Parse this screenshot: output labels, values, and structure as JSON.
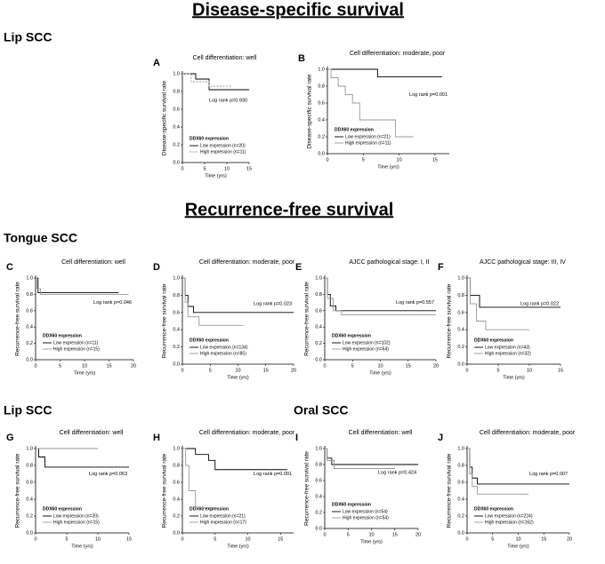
{
  "headings": {
    "dss": "Disease-specific survival",
    "rfs": "Recurrence-free survival"
  },
  "groups": {
    "lip1": "Lip SCC",
    "tongue": "Tongue SCC",
    "lip2": "Lip SCC",
    "oral": "Oral SCC"
  },
  "chart_data": [
    {
      "type": "line",
      "panel": "A",
      "title": "Cell differentiation: well",
      "annotation": "Log rank p=0.930",
      "xlabel": "Time (yrs)",
      "ylabel": "Disease-specific survival rate",
      "legend_title": "DDX60 expression",
      "xlim": [
        0,
        15
      ],
      "ylim": [
        0,
        1
      ],
      "xticks": [
        0,
        5,
        10,
        15
      ],
      "yticks": [
        {
          "value": 0,
          "label": "0.0"
        },
        0.2,
        0.4,
        0.6,
        0.8,
        {
          "value": 1,
          "label": "1.0"
        }
      ],
      "series": [
        {
          "name": "Low expression (n=20)",
          "color": "#000000",
          "linestyle": "solid",
          "x": [
            0,
            3,
            3,
            6,
            6,
            15
          ],
          "values": [
            1,
            1,
            0.94,
            0.94,
            0.82,
            0.82
          ]
        },
        {
          "name": "High expression (n=11)",
          "color": "#999999",
          "linestyle": "dashed",
          "x": [
            0,
            2,
            2,
            6,
            6,
            11
          ],
          "values": [
            1,
            1,
            0.91,
            0.91,
            0.86,
            0.86
          ]
        }
      ]
    },
    {
      "type": "line",
      "panel": "B",
      "title": "Cell differentiation: moderate, poor",
      "annotation": "Log rank p=0.001",
      "xlabel": "Time (yrs)",
      "ylabel": "Disease-specific survival rate",
      "legend_title": "DDX60 expression",
      "xlim": [
        0,
        17
      ],
      "ylim": [
        0,
        1
      ],
      "xticks": [
        0,
        5,
        10,
        15
      ],
      "yticks": [
        {
          "value": 0,
          "label": "0.0"
        },
        0.2,
        0.4,
        0.6,
        0.8,
        {
          "value": 1,
          "label": "1.0"
        }
      ],
      "series": [
        {
          "name": "Low expression (n=21)",
          "color": "#000000",
          "linestyle": "solid",
          "x": [
            0,
            7,
            7,
            16
          ],
          "values": [
            1,
            1,
            0.91,
            0.91
          ]
        },
        {
          "name": "High expression (n=11)",
          "color": "#999999",
          "linestyle": "solid",
          "x": [
            0,
            0.5,
            0.5,
            1.5,
            1.5,
            2.5,
            2.5,
            3.5,
            3.5,
            4.5,
            4.5,
            9.5,
            9.5,
            12
          ],
          "values": [
            1,
            1,
            0.9,
            0.9,
            0.8,
            0.8,
            0.7,
            0.7,
            0.6,
            0.6,
            0.4,
            0.4,
            0.2,
            0.2
          ]
        }
      ]
    },
    {
      "type": "line",
      "panel": "C",
      "title": "Cell differentiation: well",
      "annotation": "Log rank p=0.046",
      "xlabel": "Time (yrs)",
      "ylabel": "Recurrence-free survival rate",
      "legend_title": "DDX60 expression",
      "xlim": [
        0,
        20
      ],
      "ylim": [
        0,
        1
      ],
      "xticks": [
        0,
        5,
        10,
        15,
        20
      ],
      "yticks": [
        {
          "value": 0,
          "label": "0.0"
        },
        0.2,
        0.4,
        0.6,
        0.8,
        {
          "value": 1,
          "label": "1.0"
        }
      ],
      "series": [
        {
          "name": "Low expression (n=11)",
          "color": "#000000",
          "linestyle": "solid",
          "x": [
            0,
            0.5,
            0.5,
            17
          ],
          "values": [
            1,
            1,
            0.82,
            0.82
          ]
        },
        {
          "name": "High expression (n=15)",
          "color": "#999999",
          "linestyle": "solid",
          "x": [
            0,
            0.3,
            0.3,
            1,
            1,
            19
          ],
          "values": [
            1,
            1,
            0.87,
            0.87,
            0.8,
            0.8
          ]
        }
      ]
    },
    {
      "type": "line",
      "panel": "D",
      "title": "Cell differentiation: moderate, poor",
      "annotation": "Log rank p=0.023",
      "xlabel": "Time (yrs)",
      "ylabel": "Recurrence-free survival rate",
      "legend_title": "DDX60 expression",
      "xlim": [
        0,
        20
      ],
      "ylim": [
        0,
        1
      ],
      "xticks": [
        0,
        5,
        10,
        15,
        20
      ],
      "yticks": [
        {
          "value": 0,
          "label": "0.0"
        },
        0.2,
        0.4,
        0.6,
        0.8,
        {
          "value": 1,
          "label": "1.0"
        }
      ],
      "series": [
        {
          "name": "Low expression (n=134)",
          "color": "#000000",
          "linestyle": "solid",
          "x": [
            0,
            0.5,
            0.5,
            1,
            1,
            2,
            2,
            20
          ],
          "values": [
            1,
            1,
            0.8,
            0.8,
            0.67,
            0.67,
            0.6,
            0.6
          ]
        },
        {
          "name": "High expression (n=85)",
          "color": "#999999",
          "linestyle": "solid",
          "x": [
            0,
            0.5,
            0.5,
            1,
            1,
            3,
            3,
            11
          ],
          "values": [
            1,
            1,
            0.72,
            0.72,
            0.55,
            0.55,
            0.45,
            0.45
          ]
        }
      ]
    },
    {
      "type": "line",
      "panel": "E",
      "title": "AJCC pathological stage: I, II",
      "annotation": "Log rank p=0.557",
      "xlabel": "Time (yrs)",
      "ylabel": "Recurrence-free survival rate",
      "legend_title": "DDX60 expression",
      "xlim": [
        0,
        20
      ],
      "ylim": [
        0,
        1
      ],
      "xticks": [
        0,
        5,
        10,
        15,
        20
      ],
      "yticks": [
        {
          "value": 0,
          "label": "0.0"
        },
        0.2,
        0.4,
        0.6,
        0.8,
        {
          "value": 1,
          "label": "1.0"
        }
      ],
      "series": [
        {
          "name": "Low expression (n=102)",
          "color": "#000000",
          "linestyle": "solid",
          "x": [
            0,
            0.5,
            0.5,
            1,
            1,
            2,
            2,
            20
          ],
          "values": [
            1,
            1,
            0.8,
            0.8,
            0.66,
            0.66,
            0.6,
            0.6
          ]
        },
        {
          "name": "High expression (n=64)",
          "color": "#999999",
          "linestyle": "solid",
          "x": [
            0,
            0.5,
            0.5,
            1.5,
            1.5,
            3,
            3,
            20
          ],
          "values": [
            1,
            1,
            0.75,
            0.75,
            0.6,
            0.6,
            0.55,
            0.55
          ]
        }
      ]
    },
    {
      "type": "line",
      "panel": "F",
      "title": "AJCC pathological stage: III, IV",
      "annotation": "Log rank p=0.022",
      "xlabel": "Time (yrs)",
      "ylabel": "Recurrence-free survival rate",
      "legend_title": "DDX60 expression",
      "xlim": [
        0,
        15
      ],
      "ylim": [
        0,
        1
      ],
      "xticks": [
        0,
        5,
        10,
        15
      ],
      "yticks": [
        {
          "value": 0,
          "label": "0.0"
        },
        0.2,
        0.4,
        0.6,
        0.8,
        {
          "value": 1,
          "label": "1.0"
        }
      ],
      "series": [
        {
          "name": "Low expression (n=43)",
          "color": "#000000",
          "linestyle": "solid",
          "x": [
            0,
            0.5,
            0.5,
            2,
            2,
            15
          ],
          "values": [
            1,
            1,
            0.8,
            0.8,
            0.66,
            0.66
          ]
        },
        {
          "name": "High expression (n=32)",
          "color": "#999999",
          "linestyle": "solid",
          "x": [
            0,
            0.5,
            0.5,
            1.5,
            1.5,
            3,
            3,
            10
          ],
          "values": [
            1,
            1,
            0.7,
            0.7,
            0.5,
            0.5,
            0.4,
            0.4
          ]
        }
      ]
    },
    {
      "type": "line",
      "panel": "G",
      "title": "Cell differentiation: well",
      "annotation": "Log rank p=0.063",
      "xlabel": "Time (yrs)",
      "ylabel": "Recurrence-free survival rate",
      "legend_title": "DDX60 expression",
      "xlim": [
        0,
        15
      ],
      "ylim": [
        0,
        1
      ],
      "xticks": [
        0,
        5,
        10,
        15
      ],
      "yticks": [
        {
          "value": 0,
          "label": "0.0"
        },
        0.2,
        0.4,
        0.6,
        0.8,
        {
          "value": 1,
          "label": "1.0"
        }
      ],
      "series": [
        {
          "name": "Low expression (n=20)",
          "color": "#000000",
          "linestyle": "solid",
          "x": [
            0,
            0.5,
            0.5,
            1.5,
            1.5,
            15
          ],
          "values": [
            1,
            1,
            0.9,
            0.9,
            0.78,
            0.78
          ]
        },
        {
          "name": "High expression (n=15)",
          "color": "#999999",
          "linestyle": "solid",
          "x": [
            0,
            10
          ],
          "values": [
            1,
            1
          ]
        }
      ]
    },
    {
      "type": "line",
      "panel": "H",
      "title": "Cell differentiation: moderate, poor",
      "annotation": "Log rank p=0.001",
      "xlabel": "Time (yrs)",
      "ylabel": "Recurrence-free survival rate",
      "legend_title": "DDX60 expression",
      "xlim": [
        0,
        17
      ],
      "ylim": [
        0,
        1
      ],
      "xticks": [
        0,
        5,
        10,
        15
      ],
      "yticks": [
        {
          "value": 0,
          "label": "0.0"
        },
        0.2,
        0.4,
        0.6,
        0.8,
        {
          "value": 1,
          "label": "1.0"
        }
      ],
      "series": [
        {
          "name": "Low expression (n=21)",
          "color": "#000000",
          "linestyle": "solid",
          "x": [
            0,
            2,
            2,
            4,
            4,
            5,
            5,
            16
          ],
          "values": [
            1,
            1,
            0.93,
            0.93,
            0.86,
            0.86,
            0.75,
            0.75
          ]
        },
        {
          "name": "High expression (n=17)",
          "color": "#999999",
          "linestyle": "solid",
          "x": [
            0,
            0.5,
            0.5,
            1,
            1,
            2,
            2,
            5
          ],
          "values": [
            1,
            1,
            0.8,
            0.8,
            0.5,
            0.5,
            0.3,
            0.3
          ]
        }
      ]
    },
    {
      "type": "line",
      "panel": "I",
      "title": "Cell differentiation: well",
      "annotation": "Log rank p=0.424",
      "xlabel": "Time (yrs)",
      "ylabel": "Recurrence-free survival rate",
      "legend_title": "DDX60 expression",
      "xlim": [
        0,
        20
      ],
      "ylim": [
        0,
        1
      ],
      "xticks": [
        0,
        5,
        10,
        15,
        20
      ],
      "yticks": [
        {
          "value": 0,
          "label": "0.0"
        },
        0.2,
        0.4,
        0.6,
        0.8,
        {
          "value": 1,
          "label": "1.0"
        }
      ],
      "series": [
        {
          "name": "Low expression (n=54)",
          "color": "#000000",
          "linestyle": "solid",
          "x": [
            0,
            0.5,
            0.5,
            1.5,
            1.5,
            20
          ],
          "values": [
            1,
            1,
            0.88,
            0.88,
            0.8,
            0.8
          ]
        },
        {
          "name": "High expression (n=54)",
          "color": "#999999",
          "linestyle": "solid",
          "x": [
            0,
            0.5,
            0.5,
            2,
            2,
            15
          ],
          "values": [
            1,
            1,
            0.85,
            0.85,
            0.75,
            0.75
          ]
        }
      ]
    },
    {
      "type": "line",
      "panel": "J",
      "title": "Cell differentiation: moderate, poor",
      "annotation": "Log rank p=0.007",
      "xlabel": "Time (yrs)",
      "ylabel": "Recurrence-free survival rate",
      "legend_title": "DDX60 expression",
      "xlim": [
        0,
        20
      ],
      "ylim": [
        0,
        1
      ],
      "xticks": [
        0,
        5,
        10,
        15,
        20
      ],
      "yticks": [
        {
          "value": 0,
          "label": "0.0"
        },
        0.2,
        0.4,
        0.6,
        0.8,
        {
          "value": 1,
          "label": "1.0"
        }
      ],
      "series": [
        {
          "name": "Low expression (n=224)",
          "color": "#000000",
          "linestyle": "solid",
          "x": [
            0,
            0.5,
            0.5,
            1,
            1,
            2,
            2,
            20
          ],
          "values": [
            1,
            1,
            0.78,
            0.78,
            0.65,
            0.65,
            0.58,
            0.58
          ]
        },
        {
          "name": "High expression (n=162)",
          "color": "#999999",
          "linestyle": "solid",
          "x": [
            0,
            0.5,
            0.5,
            1,
            1,
            2,
            2,
            12
          ],
          "values": [
            1,
            1,
            0.7,
            0.7,
            0.55,
            0.55,
            0.46,
            0.46
          ]
        }
      ]
    }
  ]
}
